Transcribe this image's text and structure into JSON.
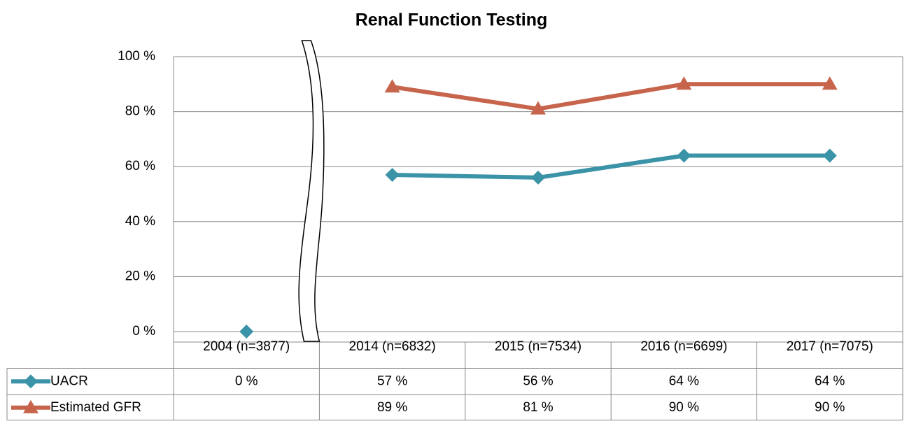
{
  "chart_data": {
    "type": "line",
    "title": "Renal Function Testing",
    "categories": [
      "2004 (n=3877)",
      "2014 (n=6832)",
      "2015 (n=7534)",
      "2016 (n=6699)",
      "2017 (n=7075)"
    ],
    "series": [
      {
        "name": "UACR",
        "color": "#3a93a7",
        "marker": "diamond",
        "values": [
          0,
          57,
          56,
          64,
          64
        ],
        "value_labels": [
          "0 %",
          "57 %",
          "56 %",
          "64 %",
          "64 %"
        ]
      },
      {
        "name": "Estimated GFR",
        "color": "#c6654b",
        "marker": "triangle",
        "values": [
          null,
          89,
          81,
          90,
          90
        ],
        "value_labels": [
          null,
          "89 %",
          "81 %",
          "90 %",
          "90 %"
        ]
      }
    ],
    "ylim": [
      0,
      100
    ],
    "yticks": [
      {
        "value": 0,
        "label": "0 %"
      },
      {
        "value": 20,
        "label": "20 %"
      },
      {
        "value": 40,
        "label": "40 %"
      },
      {
        "value": 60,
        "label": "60 %"
      },
      {
        "value": 80,
        "label": "80 %"
      },
      {
        "value": 100,
        "label": "100 %"
      }
    ],
    "grid": true,
    "x_break_after": 0
  }
}
